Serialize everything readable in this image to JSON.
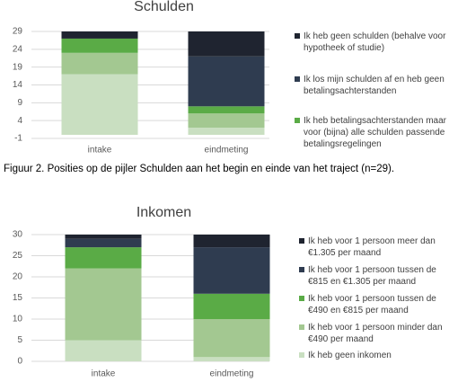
{
  "chart_data": [
    {
      "type": "bar",
      "stacked": true,
      "title": "Schulden",
      "categories": [
        "intake",
        "eindmeting"
      ],
      "series": [
        {
          "name": "Ik heb geen schulden (behalve voor hypotheek of studie)",
          "color": "#1f2430",
          "values": [
            2,
            7
          ]
        },
        {
          "name": "Ik los mijn schulden af en heb geen betalingsachterstanden",
          "color": "#2f3c50",
          "values": [
            0,
            14
          ]
        },
        {
          "name": "Ik heb betalingsachterstanden maar voor (bijna) alle schulden passende betalingsregelingen",
          "color": "#5aab46",
          "values": [
            4,
            2
          ]
        },
        {
          "color": "#a3c891",
          "values": [
            6,
            4
          ]
        },
        {
          "color": "#c9dfc1",
          "values": [
            17,
            2
          ]
        }
      ],
      "ylim": [
        -1,
        29
      ],
      "yticks": [
        -1,
        4,
        9,
        14,
        19,
        24,
        29
      ],
      "grid": true
    },
    {
      "type": "bar",
      "stacked": true,
      "title": "Inkomen",
      "categories": [
        "intake",
        "eindmeting"
      ],
      "series": [
        {
          "name": "Ik heb voor 1 persoon meer dan €1.305 per maand",
          "color": "#1f2430",
          "values": [
            1,
            3
          ]
        },
        {
          "name": "Ik heb voor 1 persoon tussen de €815 en €1.305 per maand",
          "color": "#2f3c50",
          "values": [
            2,
            11
          ]
        },
        {
          "name": "Ik heb voor 1 persoon tussen de €490 en €815 per maand",
          "color": "#5aab46",
          "values": [
            5,
            6
          ]
        },
        {
          "name": "Ik heb voor 1 persoon minder dan €490 per maand",
          "color": "#a3c891",
          "values": [
            17,
            9
          ]
        },
        {
          "name": "Ik heb geen inkomen",
          "color": "#c9dfc1",
          "values": [
            5,
            1
          ]
        }
      ],
      "ylim": [
        0,
        30
      ],
      "yticks": [
        0,
        5,
        10,
        15,
        20,
        25,
        30
      ],
      "grid": true
    }
  ],
  "caption": "Figuur 2. Posities op de pijler Schulden aan het begin en einde van het traject (n=29)."
}
